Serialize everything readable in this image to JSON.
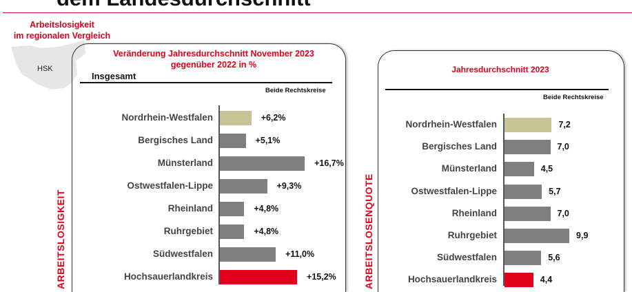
{
  "page": {
    "title": "dem Landesdurchschnitt",
    "subheading": [
      "Arbeitslosigkeit",
      "im regionalen Vergleich"
    ],
    "map_label": "HSK",
    "vertical_labels": [
      "ARBEITSLOSIGKEIT",
      "ARBEITSLOSENQUOTE"
    ]
  },
  "colors": {
    "nrw": "#c8c496",
    "region": "#7f7f7f",
    "highlight": "#e2001a"
  },
  "chart_data": [
    {
      "type": "bar",
      "orientation": "horizontal",
      "title": "Veränderung Jahresdurchschnitt November 2023 gegenüber 2022 in %",
      "title_lines": [
        "Veränderung Jahresdurchschnitt November 2023",
        "gegenüber 2022 in %"
      ],
      "subtitle": "Insgesamt",
      "note": "Beide Rechtskreise",
      "categories": [
        "Nordrhein-Westfalen",
        "Bergisches Land",
        "Münsterland",
        "Ostwestfalen-Lippe",
        "Rheinland",
        "Ruhrgebiet",
        "Südwestfalen",
        "Hochsauerlandkreis"
      ],
      "values": [
        6.2,
        5.1,
        16.7,
        9.3,
        4.8,
        4.8,
        11.0,
        15.2
      ],
      "labels": [
        "+6,2%",
        "+5,1%",
        "+16,7%",
        "+9,3%",
        "+4,8%",
        "+4,8%",
        "+11,0%",
        "+15,2%"
      ],
      "xlim": [
        0,
        18
      ]
    },
    {
      "type": "bar",
      "orientation": "horizontal",
      "title": "Jahresdurchschnitt 2023",
      "note": "Beide Rechtskreise",
      "categories": [
        "Nordrhein-Westfalen",
        "Bergisches Land",
        "Münsterland",
        "Ostwestfalen-Lippe",
        "Rheinland",
        "Ruhrgebiet",
        "Südwestfalen",
        "Hochsauerlandkreis"
      ],
      "values": [
        7.2,
        7.0,
        4.5,
        5.7,
        7.0,
        9.9,
        5.6,
        4.4
      ],
      "labels": [
        "7,2",
        "7,0",
        "4,5",
        "5,7",
        "7,0",
        "9,9",
        "5,6",
        "4,4"
      ],
      "xlim": [
        0,
        10
      ]
    }
  ]
}
